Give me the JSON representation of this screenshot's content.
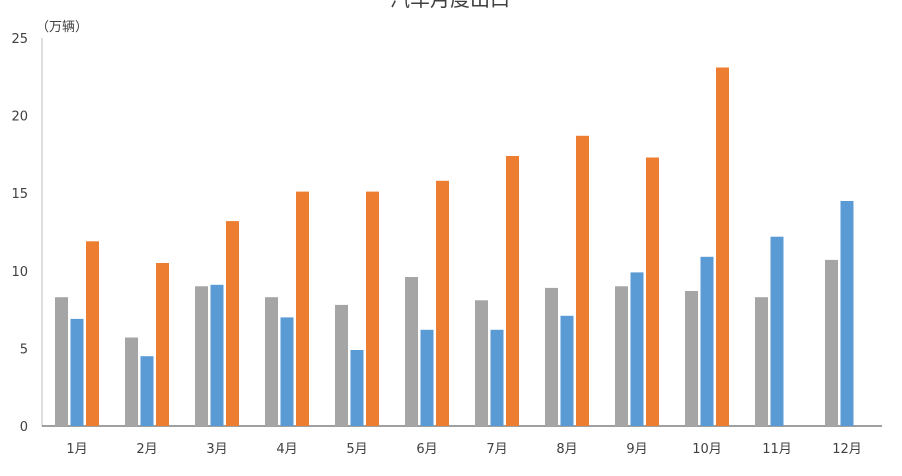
{
  "chart_data": {
    "type": "bar",
    "title": "汽车月度出口",
    "unit_label": "（万辆）",
    "categories": [
      "1月",
      "2月",
      "3月",
      "4月",
      "5月",
      "6月",
      "7月",
      "8月",
      "9月",
      "10月",
      "11月",
      "12月"
    ],
    "ylim": [
      0,
      25
    ],
    "yticks": [
      0,
      5,
      10,
      15,
      20,
      25
    ],
    "grid": false,
    "legend": "none",
    "series": [
      {
        "color": "#a5a5a5",
        "values": [
          8.3,
          5.7,
          9.0,
          8.3,
          7.8,
          9.6,
          8.1,
          8.9,
          9.0,
          8.7,
          8.3,
          10.7
        ]
      },
      {
        "color": "#5b9bd5",
        "values": [
          6.9,
          4.5,
          9.1,
          7.0,
          4.9,
          6.2,
          6.2,
          7.1,
          9.9,
          10.9,
          12.2,
          14.5
        ]
      },
      {
        "color": "#ed7d31",
        "values": [
          11.9,
          10.5,
          13.2,
          15.1,
          15.1,
          15.8,
          17.4,
          18.7,
          17.3,
          23.1,
          null,
          null
        ]
      }
    ]
  }
}
